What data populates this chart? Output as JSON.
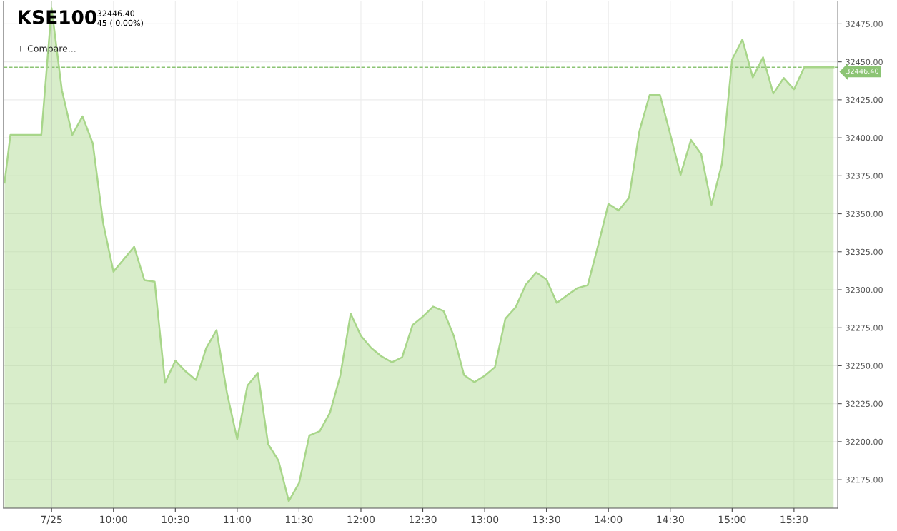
{
  "chart_data": {
    "type": "area",
    "title": "KSE100",
    "subtitle": "32446.40\n45 ( 0.00%)",
    "annotations": [
      "+ Compare..."
    ],
    "x": [
      9.12,
      9.167,
      9.417,
      9.5,
      9.583,
      9.667,
      9.75,
      9.833,
      9.917,
      10.0,
      10.167,
      10.25,
      10.333,
      10.417,
      10.5,
      10.583,
      10.667,
      10.75,
      10.833,
      10.917,
      11.0,
      11.083,
      11.167,
      11.25,
      11.333,
      11.417,
      11.5,
      11.583,
      11.667,
      11.75,
      11.833,
      11.917,
      12.0,
      12.083,
      12.167,
      12.25,
      12.333,
      12.417,
      12.5,
      12.583,
      12.667,
      12.75,
      12.833,
      12.917,
      13.0,
      13.083,
      13.167,
      13.25,
      13.333,
      13.417,
      13.5,
      13.583,
      13.667,
      13.75,
      13.833,
      13.917,
      14.0,
      14.083,
      14.167,
      14.25,
      14.333,
      14.417,
      14.5,
      14.583,
      14.667,
      14.75,
      14.833,
      14.917,
      15.0,
      15.083,
      15.167,
      15.25,
      15.333,
      15.417,
      15.5,
      15.583,
      15.82
    ],
    "series": [
      {
        "color": "#a8d68a",
        "values": [
          32370.5,
          32401.9,
          32401.9,
          32485.3,
          32431.4,
          32401.9,
          32414.1,
          32396.3,
          32343.8,
          32311.9,
          32328.3,
          32306.3,
          32305.3,
          32238.8,
          32253.3,
          32246.3,
          32240.6,
          32261.7,
          32273.4,
          32232.2,
          32201.7,
          32236.9,
          32245.3,
          32198.4,
          32187.7,
          32160.9,
          32172.7,
          32204.1,
          32206.9,
          32219.1,
          32243.4,
          32284.2,
          32269.7,
          32261.7,
          32256.1,
          32252.3,
          32255.6,
          32276.7,
          32282.3,
          32288.9,
          32286.1,
          32269.7,
          32243.9,
          32239.2,
          32243.4,
          32249.1,
          32280.9,
          32288.4,
          32303.4,
          32311.4,
          32306.7,
          32291.3,
          32296.4,
          32301.1,
          32303.0,
          32329.2,
          32356.4,
          32352.2,
          32360.6,
          32404.2,
          32428.1,
          32428.1,
          32402.3,
          32375.6,
          32398.6,
          32389.2,
          32355.9,
          32382.7,
          32451.6,
          32464.7,
          32439.8,
          32453.0,
          32429.1,
          32439.4,
          32431.9,
          32446.4,
          32446.4
        ]
      }
    ],
    "xlim": [
      9.112,
      15.854
    ],
    "xticks": [
      {
        "value": 9.5,
        "label": "7/25"
      },
      {
        "value": 10,
        "label": "10:00"
      },
      {
        "value": 10.5,
        "label": "10:30"
      },
      {
        "value": 11,
        "label": "11:00"
      },
      {
        "value": 11.5,
        "label": "11:30"
      },
      {
        "value": 12,
        "label": "12:00"
      },
      {
        "value": 12.5,
        "label": "12:30"
      },
      {
        "value": 13,
        "label": "13:00"
      },
      {
        "value": 13.5,
        "label": "13:30"
      },
      {
        "value": 14,
        "label": "14:00"
      },
      {
        "value": 14.5,
        "label": "14:30"
      },
      {
        "value": 15,
        "label": "15:00"
      },
      {
        "value": 15.5,
        "label": "15:30"
      }
    ],
    "ylim": [
      32156.25,
      32490
    ],
    "yticks": [
      {
        "value": 32175,
        "label": "32175.00"
      },
      {
        "value": 32200,
        "label": "32200.00"
      },
      {
        "value": 32225,
        "label": "32225.00"
      },
      {
        "value": 32250,
        "label": "32250.00"
      },
      {
        "value": 32275,
        "label": "32275.00"
      },
      {
        "value": 32300,
        "label": "32300.00"
      },
      {
        "value": 32325,
        "label": "32325.00"
      },
      {
        "value": 32350,
        "label": "32350.00"
      },
      {
        "value": 32375,
        "label": "32375.00"
      },
      {
        "value": 32400,
        "label": "32400.00"
      },
      {
        "value": 32425,
        "label": "32425.00"
      },
      {
        "value": 32450,
        "label": "32450.00"
      },
      {
        "value": 32475,
        "label": "32475.00"
      }
    ],
    "ref_lines": [
      {
        "axis": "y",
        "value": 32446.4,
        "label": "32446.40",
        "color": "#8cc474",
        "line_style": "dashed"
      },
      {
        "axis": "x",
        "value": 9.5,
        "label": null,
        "color": "#c8d8c0",
        "line_style": "solid"
      }
    ],
    "grid": true,
    "legend": false,
    "marker": "none",
    "line_style": "solid"
  }
}
